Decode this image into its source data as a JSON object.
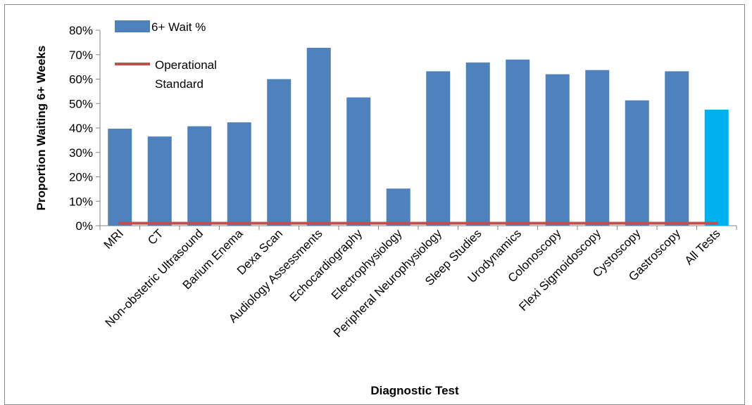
{
  "chart_data": {
    "type": "bar",
    "title": "",
    "xlabel": "Diagnostic  Test",
    "ylabel": "Proportion Waiting 6+ Weeks",
    "ylim": [
      0,
      0.8
    ],
    "yticks": [
      "0%",
      "10%",
      "20%",
      "30%",
      "40%",
      "50%",
      "60%",
      "70%",
      "80%"
    ],
    "categories": [
      "MRI",
      "CT",
      "Non-obstetric Ultrasound",
      "Barium Enema",
      "Dexa Scan",
      "Audiology Assessments",
      "Echocardiography",
      "Electrophysiology",
      "Peripheral Neurophysiology",
      "Sleep Studies",
      "Urodynamics",
      "Colonoscopy",
      "Flexi Sigmoidoscopy",
      "Cystoscopy",
      "Gastroscopy",
      "All Tests"
    ],
    "series": [
      {
        "name": "6+ Wait %",
        "type": "bar",
        "color": "#4f81bd",
        "highlight_color": "#00b0f0",
        "highlight_category": "All Tests",
        "values": [
          0.397,
          0.365,
          0.407,
          0.423,
          0.6,
          0.728,
          0.525,
          0.152,
          0.632,
          0.668,
          0.68,
          0.62,
          0.637,
          0.513,
          0.632,
          0.475
        ]
      },
      {
        "name": "Operational Standard",
        "type": "line",
        "color": "#c0504d",
        "values": [
          0.01,
          0.01,
          0.01,
          0.01,
          0.01,
          0.01,
          0.01,
          0.01,
          0.01,
          0.01,
          0.01,
          0.01,
          0.01,
          0.01,
          0.01,
          0.01
        ]
      }
    ],
    "legend": {
      "position": "top-left",
      "line2_text": "Standard"
    }
  }
}
